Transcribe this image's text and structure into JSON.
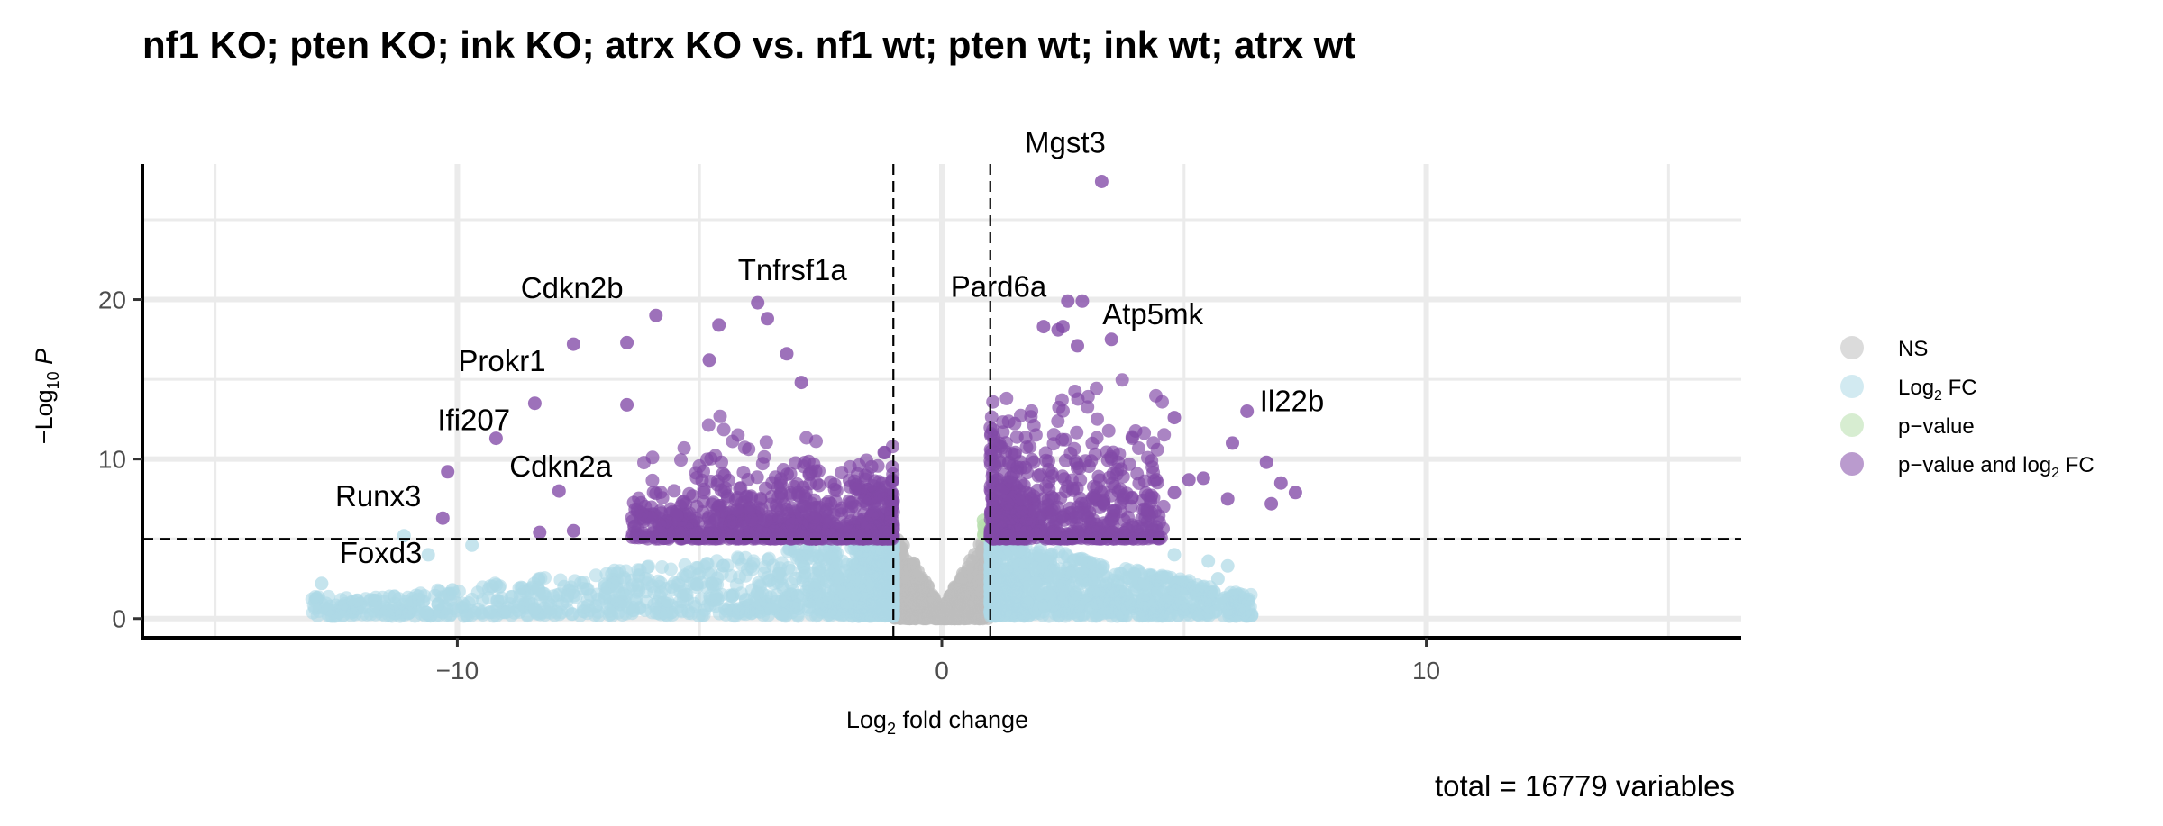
{
  "chart_data": {
    "type": "scatter",
    "title": "nf1 KO; pten KO; ink KO; atrx KO vs. nf1 wt; pten wt; ink wt; atrx wt",
    "xlabel": {
      "pre": "Log",
      "sub": "2",
      "post": " fold change"
    },
    "ylabel": {
      "pre": "−Log",
      "sub": "10",
      "post": " P"
    },
    "caption": "total = 16779 variables",
    "xlim": [
      -16.5,
      16.5
    ],
    "ylim": [
      -1.2,
      28.5
    ],
    "x_ticks": [
      -10,
      0,
      10
    ],
    "x_tick_labels": [
      "−10",
      "0",
      "10"
    ],
    "y_ticks": [
      0,
      10,
      20
    ],
    "y_tick_labels": [
      "0",
      "10",
      "20"
    ],
    "grid": true,
    "thresholds": {
      "log2fc": [
        -1,
        1
      ],
      "neglog10p": 5
    },
    "colors": {
      "NS": "#bdbdbd",
      "Log2FC": "#add8e6",
      "pvalue": "#b7deac",
      "both": "#8249a6"
    },
    "legend": {
      "position": "right",
      "entries": [
        {
          "key": "NS",
          "label": "NS"
        },
        {
          "key": "Log2FC",
          "label": "Log",
          "sub": "2",
          "post": " FC"
        },
        {
          "key": "pvalue",
          "label": "p−value"
        },
        {
          "key": "both",
          "label": "p−value and log",
          "sub": "2",
          "post": " FC"
        }
      ]
    },
    "labeled_points": [
      {
        "name": "Mgst3",
        "x": 3.2,
        "y": 27.3
      },
      {
        "name": "Cdkn2b",
        "x": -5.9,
        "y": 19.0
      },
      {
        "name": "Tnfrsf1a",
        "x": -3.8,
        "y": 19.8
      },
      {
        "name": "Pard6a",
        "x": 2.6,
        "y": 19.9
      },
      {
        "name": "Atp5mk",
        "x": 3.5,
        "y": 17.5
      },
      {
        "name": "Prokr1",
        "x": -7.6,
        "y": 17.2
      },
      {
        "name": "Ifi207",
        "x": -8.4,
        "y": 13.5
      },
      {
        "name": "Il22b",
        "x": 6.3,
        "y": 13.0
      },
      {
        "name": "Cdkn2a",
        "x": -7.9,
        "y": 8.0
      },
      {
        "name": "Runx3",
        "x": -10.1,
        "y": 9.2
      },
      {
        "name": "Foxd3",
        "x": -10.2,
        "y": 6.3
      }
    ],
    "highlight_points": [
      [
        3.3,
        27.4
      ],
      [
        -5.9,
        19.0
      ],
      [
        -3.8,
        19.8
      ],
      [
        2.6,
        19.9
      ],
      [
        2.9,
        19.9
      ],
      [
        3.5,
        17.5
      ],
      [
        -7.6,
        17.2
      ],
      [
        -6.5,
        17.3
      ],
      [
        -8.4,
        13.5
      ],
      [
        6.3,
        13.0
      ],
      [
        -7.9,
        8.0
      ],
      [
        -10.2,
        9.2
      ],
      [
        -10.3,
        6.3
      ],
      [
        -4.6,
        18.4
      ],
      [
        -3.6,
        18.8
      ],
      [
        -3.2,
        16.6
      ],
      [
        -4.8,
        16.2
      ],
      [
        2.1,
        18.3
      ],
      [
        2.5,
        18.3
      ],
      [
        2.4,
        18.1
      ],
      [
        2.8,
        17.1
      ],
      [
        -2.9,
        14.8
      ],
      [
        -6.5,
        13.4
      ],
      [
        -9.2,
        11.3
      ],
      [
        6.0,
        11.0
      ],
      [
        6.7,
        9.8
      ],
      [
        7.0,
        8.5
      ],
      [
        7.3,
        7.9
      ],
      [
        5.4,
        8.8
      ],
      [
        5.1,
        8.7
      ],
      [
        4.8,
        7.9
      ],
      [
        5.9,
        7.5
      ],
      [
        6.8,
        7.2
      ],
      [
        4.8,
        12.6
      ],
      [
        -7.6,
        5.5
      ],
      [
        -8.3,
        5.4
      ]
    ],
    "cloud": {
      "note": "significant cloud ranges in data units",
      "neg": {
        "x": [
          -6.4,
          -1.0
        ],
        "y": [
          5.0,
          11.5
        ]
      },
      "pos": {
        "x": [
          1.0,
          4.6
        ],
        "y": [
          5.0,
          15.2
        ]
      },
      "fc_neg": {
        "x": [
          -12.9,
          -1.0
        ],
        "y": [
          0.2,
          5.0
        ]
      },
      "fc_pos": {
        "x": [
          1.0,
          6.2
        ],
        "y": [
          0.2,
          5.0
        ]
      },
      "ns": {
        "x": [
          -1.0,
          1.0
        ],
        "y": [
          0.0,
          5.0
        ]
      }
    }
  }
}
